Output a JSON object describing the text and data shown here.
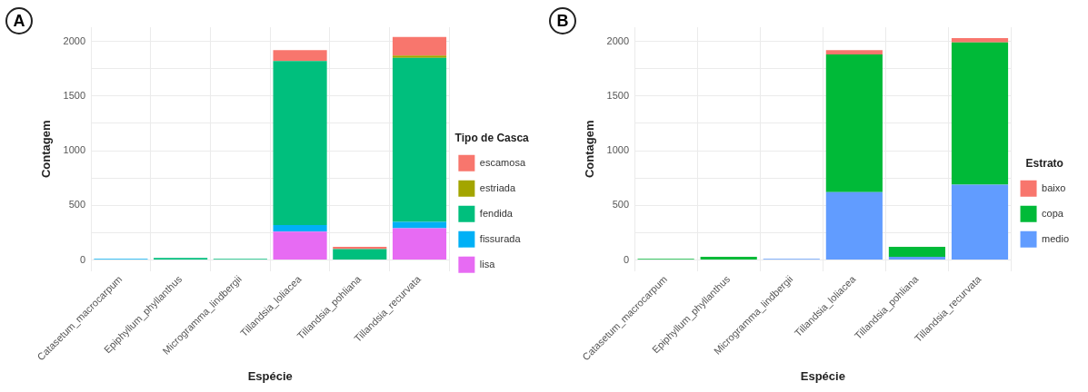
{
  "chart_data": [
    {
      "type": "bar",
      "stacked": true,
      "xlabel": "Espécie",
      "ylabel": "Contagem",
      "legend_title": "Tipo de Casca",
      "legend": "right",
      "grid": true,
      "categories": [
        "Catasetum_macrocarpum",
        "Epiphyllum_phyllanthus",
        "Microgramma_lindbergii",
        "Tillandsia_loliacea",
        "Tillandsia_pohliana",
        "Tillandsia_recurvata"
      ],
      "series": [
        {
          "name": "lisa",
          "color": "#e76bf3",
          "values": [
            0,
            null,
            0,
            260,
            0,
            290
          ]
        },
        {
          "name": "fissurada",
          "color": "#00b0f6",
          "values": [
            10,
            0,
            0,
            60,
            0,
            60
          ]
        },
        {
          "name": "fendida",
          "color": "#00bf7d",
          "values": [
            0,
            20,
            10,
            1500,
            100,
            1500
          ]
        },
        {
          "name": "estriada",
          "color": "#a3a500",
          "values": [
            0,
            0,
            0,
            0,
            0,
            20
          ]
        },
        {
          "name": "escamosa",
          "color": "#f8766d",
          "values": [
            0,
            0,
            0,
            100,
            20,
            170
          ]
        }
      ],
      "ylim": [
        -100,
        2130
      ],
      "yticks": [
        0,
        {
          "value": 250,
          "label": null
        },
        500,
        {
          "value": 750,
          "label": null
        },
        1000,
        {
          "value": 1250,
          "label": null
        },
        1500,
        {
          "value": 1750,
          "label": null
        },
        2000
      ],
      "annotations": [
        "A"
      ]
    },
    {
      "type": "bar",
      "stacked": true,
      "xlabel": "Espécie",
      "ylabel": "Contagem",
      "legend_title": "Estrato",
      "legend": "right",
      "grid": true,
      "categories": [
        "Catasetum_macrocarpum",
        "Epiphyllum_phyllanthus",
        "Microgramma_lindbergii",
        "Tillandsia_loliacea",
        "Tillandsia_pohliana",
        "Tillandsia_recurvata"
      ],
      "series": [
        {
          "name": "medio",
          "color": "#619cff",
          "values": [
            0,
            0,
            10,
            620,
            30,
            690
          ]
        },
        {
          "name": "copa",
          "color": "#00ba38",
          "values": [
            10,
            30,
            0,
            1260,
            90,
            1300
          ]
        },
        {
          "name": "baixo",
          "color": "#f8766d",
          "values": [
            0,
            0,
            0,
            40,
            0,
            40
          ]
        }
      ],
      "ylim": [
        -100,
        2130
      ],
      "yticks": [
        0,
        {
          "value": 250,
          "label": null
        },
        500,
        {
          "value": 750,
          "label": null
        },
        1000,
        {
          "value": 1250,
          "label": null
        },
        1500,
        {
          "value": 1750,
          "label": null
        },
        2000
      ],
      "annotations": [
        "B"
      ]
    }
  ]
}
